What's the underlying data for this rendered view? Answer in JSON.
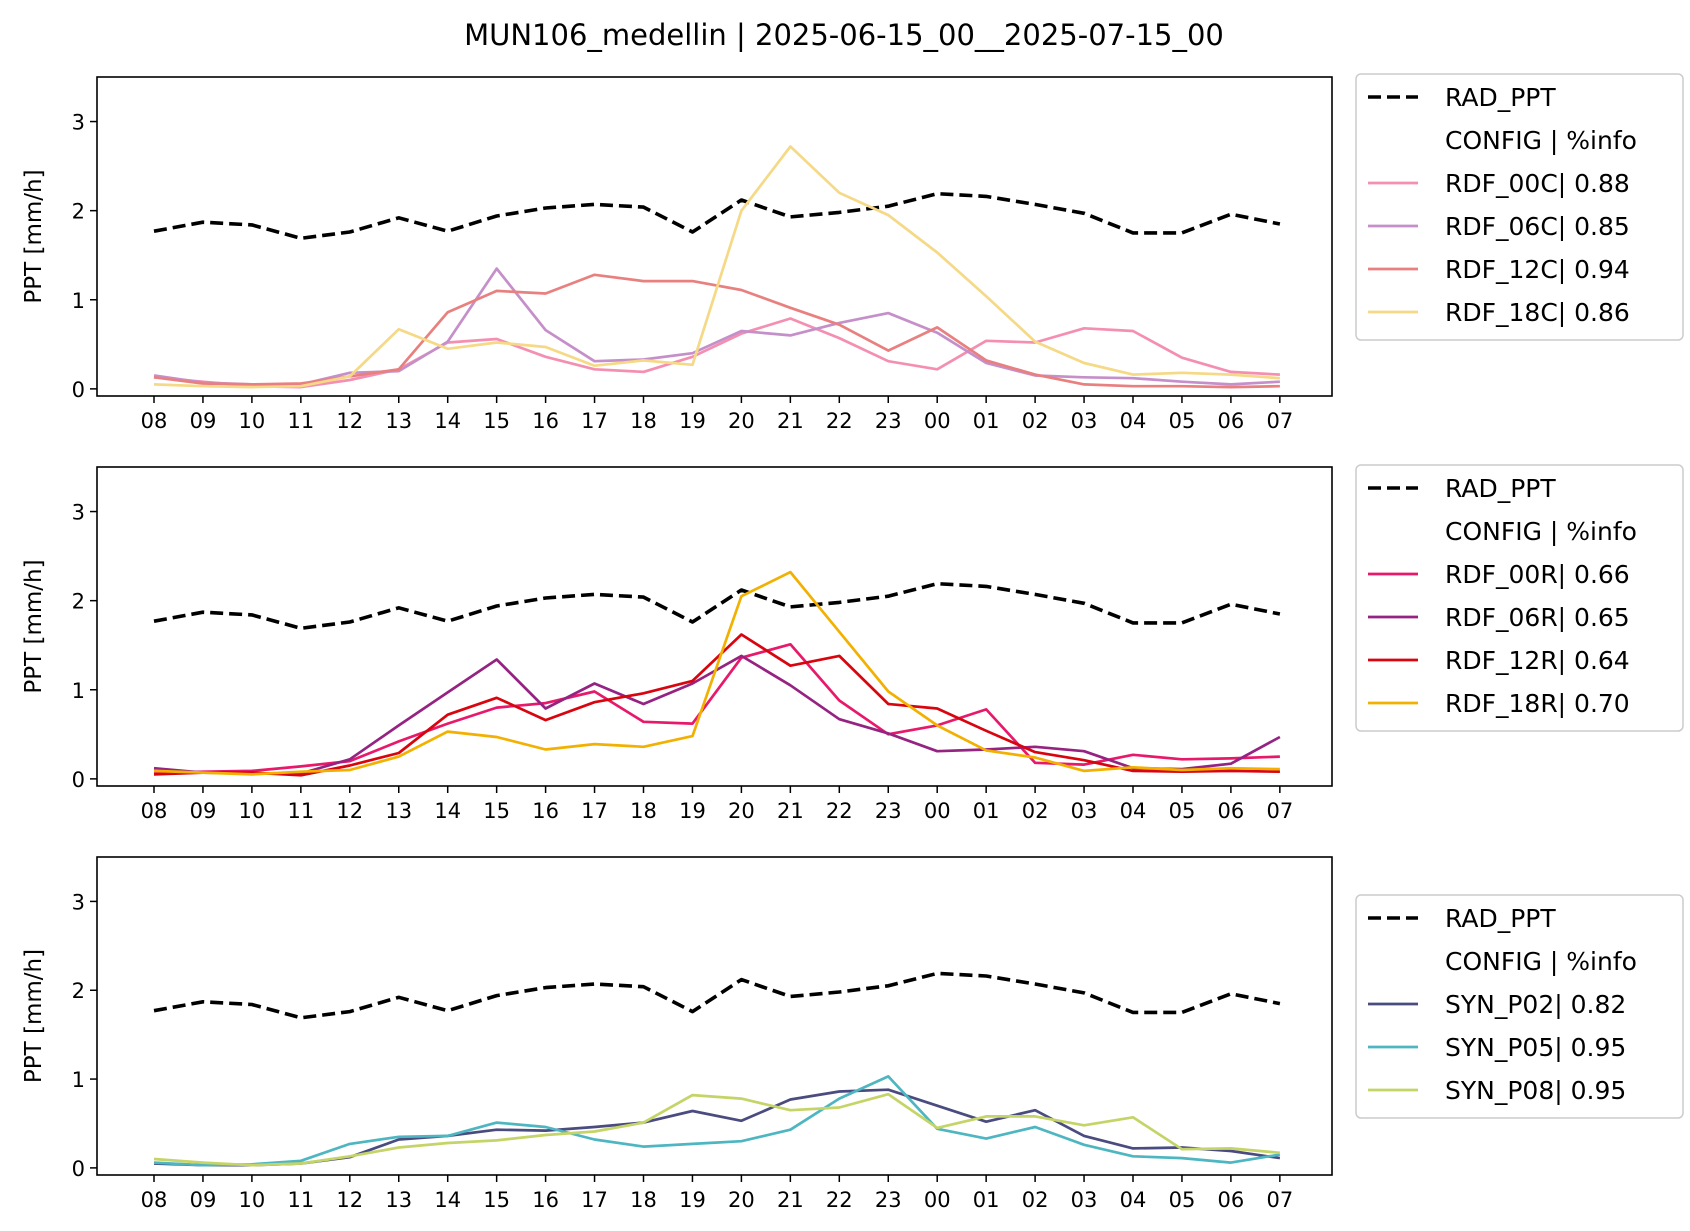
{
  "title": "MUN106_medellin | 2025-06-15_00__2025-07-15_00",
  "chart_data": [
    {
      "type": "line",
      "ylabel": "PPT [mm/h]",
      "ylim": [
        -0.08,
        3.5
      ],
      "yticks": [
        "0",
        "1",
        "2",
        "3"
      ],
      "categories": [
        "08",
        "09",
        "10",
        "11",
        "12",
        "13",
        "14",
        "15",
        "16",
        "17",
        "18",
        "19",
        "20",
        "21",
        "22",
        "23",
        "00",
        "01",
        "02",
        "03",
        "04",
        "05",
        "06",
        "07"
      ],
      "legend_position": "outside upper right",
      "legend_header": "CONFIG  | %info",
      "series": [
        {
          "name": "RAD_PPT",
          "color": "#000000",
          "dashed": true,
          "values": [
            1.77,
            1.87,
            1.84,
            1.69,
            1.76,
            1.92,
            1.77,
            1.94,
            2.03,
            2.07,
            2.04,
            1.76,
            2.12,
            1.93,
            1.98,
            2.05,
            2.19,
            2.16,
            2.07,
            1.97,
            1.75,
            1.75,
            1.96,
            1.85
          ]
        },
        {
          "name": "RDF_00C| 0.88",
          "color": "#f48fb1",
          "values": [
            0.13,
            0.08,
            0.03,
            0.02,
            0.1,
            0.22,
            0.52,
            0.56,
            0.36,
            0.22,
            0.19,
            0.36,
            0.62,
            0.79,
            0.57,
            0.31,
            0.22,
            0.54,
            0.52,
            0.68,
            0.65,
            0.35,
            0.19,
            0.16
          ]
        },
        {
          "name": "RDF_06C| 0.85",
          "color": "#c58fc9",
          "values": [
            0.15,
            0.07,
            0.05,
            0.05,
            0.18,
            0.2,
            0.53,
            1.35,
            0.66,
            0.31,
            0.33,
            0.4,
            0.65,
            0.6,
            0.74,
            0.85,
            0.63,
            0.29,
            0.15,
            0.13,
            0.12,
            0.08,
            0.05,
            0.08
          ]
        },
        {
          "name": "RDF_12C| 0.94",
          "color": "#e98080",
          "values": [
            0.13,
            0.06,
            0.05,
            0.06,
            0.14,
            0.22,
            0.86,
            1.1,
            1.07,
            1.28,
            1.21,
            1.21,
            1.11,
            0.91,
            0.72,
            0.43,
            0.69,
            0.32,
            0.16,
            0.05,
            0.03,
            0.03,
            0.02,
            0.03
          ]
        },
        {
          "name": "RDF_18C| 0.86",
          "color": "#f5d986",
          "values": [
            0.05,
            0.03,
            0.02,
            0.03,
            0.14,
            0.67,
            0.45,
            0.52,
            0.47,
            0.26,
            0.32,
            0.27,
            2.0,
            2.72,
            2.2,
            1.95,
            1.53,
            1.04,
            0.53,
            0.29,
            0.16,
            0.18,
            0.16,
            0.12
          ]
        }
      ]
    },
    {
      "type": "line",
      "ylabel": "PPT [mm/h]",
      "ylim": [
        -0.08,
        3.5
      ],
      "yticks": [
        "0",
        "1",
        "2",
        "3"
      ],
      "categories": [
        "08",
        "09",
        "10",
        "11",
        "12",
        "13",
        "14",
        "15",
        "16",
        "17",
        "18",
        "19",
        "20",
        "21",
        "22",
        "23",
        "00",
        "01",
        "02",
        "03",
        "04",
        "05",
        "06",
        "07"
      ],
      "legend_position": "outside upper right",
      "legend_header": "CONFIG  | %info",
      "series": [
        {
          "name": "RAD_PPT",
          "color": "#000000",
          "dashed": true,
          "values": [
            1.77,
            1.87,
            1.84,
            1.69,
            1.76,
            1.92,
            1.77,
            1.94,
            2.03,
            2.07,
            2.04,
            1.76,
            2.12,
            1.93,
            1.98,
            2.05,
            2.19,
            2.16,
            2.07,
            1.97,
            1.75,
            1.75,
            1.96,
            1.85
          ]
        },
        {
          "name": "RDF_00R| 0.66",
          "color": "#e8196a",
          "values": [
            0.06,
            0.08,
            0.09,
            0.14,
            0.2,
            0.42,
            0.62,
            0.8,
            0.85,
            0.98,
            0.64,
            0.62,
            1.36,
            1.51,
            0.88,
            0.5,
            0.6,
            0.78,
            0.18,
            0.16,
            0.27,
            0.22,
            0.23,
            0.25
          ]
        },
        {
          "name": "RDF_06R| 0.65",
          "color": "#942382",
          "values": [
            0.12,
            0.07,
            0.06,
            0.06,
            0.22,
            0.6,
            0.97,
            1.34,
            0.79,
            1.07,
            0.84,
            1.07,
            1.38,
            1.05,
            0.67,
            0.51,
            0.31,
            0.33,
            0.36,
            0.31,
            0.12,
            0.11,
            0.17,
            0.47
          ]
        },
        {
          "name": "RDF_12R| 0.64",
          "color": "#d8050f",
          "values": [
            0.05,
            0.07,
            0.07,
            0.04,
            0.15,
            0.29,
            0.72,
            0.91,
            0.66,
            0.86,
            0.96,
            1.1,
            1.62,
            1.27,
            1.38,
            0.84,
            0.79,
            0.54,
            0.3,
            0.21,
            0.09,
            0.08,
            0.09,
            0.08
          ]
        },
        {
          "name": "RDF_18R| 0.70",
          "color": "#f2b000",
          "values": [
            0.09,
            0.07,
            0.05,
            0.08,
            0.1,
            0.25,
            0.53,
            0.47,
            0.33,
            0.39,
            0.36,
            0.48,
            2.05,
            2.32,
            1.65,
            0.98,
            0.6,
            0.32,
            0.24,
            0.09,
            0.13,
            0.1,
            0.12,
            0.11
          ]
        }
      ]
    },
    {
      "type": "line",
      "ylabel": "PPT [mm/h]",
      "ylim": [
        -0.08,
        3.5
      ],
      "yticks": [
        "0",
        "1",
        "2",
        "3"
      ],
      "categories": [
        "08",
        "09",
        "10",
        "11",
        "12",
        "13",
        "14",
        "15",
        "16",
        "17",
        "18",
        "19",
        "20",
        "21",
        "22",
        "23",
        "00",
        "01",
        "02",
        "03",
        "04",
        "05",
        "06",
        "07"
      ],
      "legend_position": "outside right",
      "legend_header": "CONFIG  | %info",
      "series": [
        {
          "name": "RAD_PPT",
          "color": "#000000",
          "dashed": true,
          "values": [
            1.77,
            1.87,
            1.84,
            1.69,
            1.76,
            1.92,
            1.77,
            1.94,
            2.03,
            2.07,
            2.04,
            1.76,
            2.12,
            1.93,
            1.98,
            2.05,
            2.19,
            2.16,
            2.07,
            1.97,
            1.75,
            1.75,
            1.96,
            1.85
          ]
        },
        {
          "name": "SYN_P02| 0.82",
          "color": "#4a4b7f",
          "values": [
            0.05,
            0.03,
            0.03,
            0.05,
            0.12,
            0.32,
            0.36,
            0.43,
            0.42,
            0.46,
            0.51,
            0.64,
            0.53,
            0.77,
            0.86,
            0.88,
            0.7,
            0.52,
            0.65,
            0.36,
            0.22,
            0.23,
            0.19,
            0.11
          ]
        },
        {
          "name": "SYN_P05| 0.95",
          "color": "#4db6c1",
          "values": [
            0.06,
            0.03,
            0.04,
            0.08,
            0.27,
            0.35,
            0.36,
            0.51,
            0.46,
            0.32,
            0.24,
            0.27,
            0.3,
            0.43,
            0.78,
            1.03,
            0.44,
            0.33,
            0.46,
            0.26,
            0.13,
            0.11,
            0.06,
            0.15
          ]
        },
        {
          "name": "SYN_P08| 0.95",
          "color": "#c5d466",
          "values": [
            0.1,
            0.06,
            0.03,
            0.05,
            0.13,
            0.23,
            0.28,
            0.31,
            0.37,
            0.41,
            0.51,
            0.82,
            0.78,
            0.65,
            0.68,
            0.83,
            0.45,
            0.58,
            0.58,
            0.48,
            0.57,
            0.21,
            0.22,
            0.17
          ]
        }
      ]
    }
  ]
}
